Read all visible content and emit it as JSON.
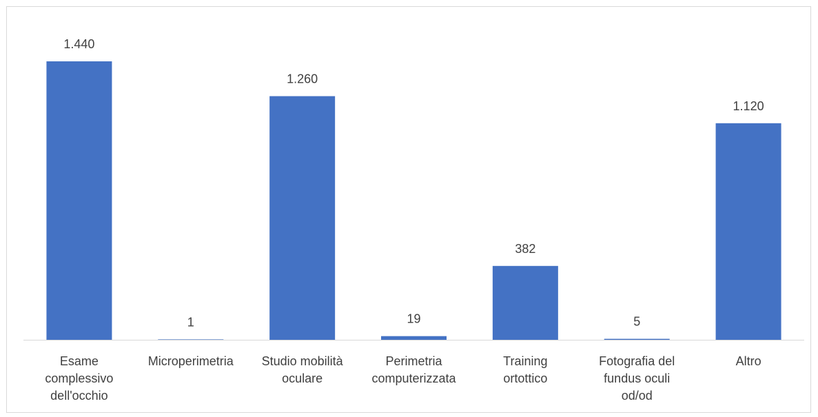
{
  "chart_data": {
    "type": "bar",
    "title": "",
    "xlabel": "",
    "ylabel": "",
    "categories": [
      [
        "Esame",
        "complessivo",
        "dell'occhio"
      ],
      [
        "Microperimetria"
      ],
      [
        "Studio mobilità",
        "oculare"
      ],
      [
        "Perimetria",
        "computerizzata"
      ],
      [
        "Training",
        "ortottico"
      ],
      [
        "Fotografia del",
        "fundus oculi",
        "od/od"
      ],
      [
        "Altro"
      ]
    ],
    "values": [
      1440,
      1,
      1260,
      19,
      382,
      5,
      1120
    ],
    "value_labels": [
      "1.440",
      "1",
      "1.260",
      "19",
      "382",
      "5",
      "1.120"
    ],
    "ylim": [
      0,
      1440
    ],
    "grid": false,
    "legend": "none",
    "bar_color": "#4472C4",
    "axis_color": "#d9d9d9",
    "label_color": "#404040"
  }
}
